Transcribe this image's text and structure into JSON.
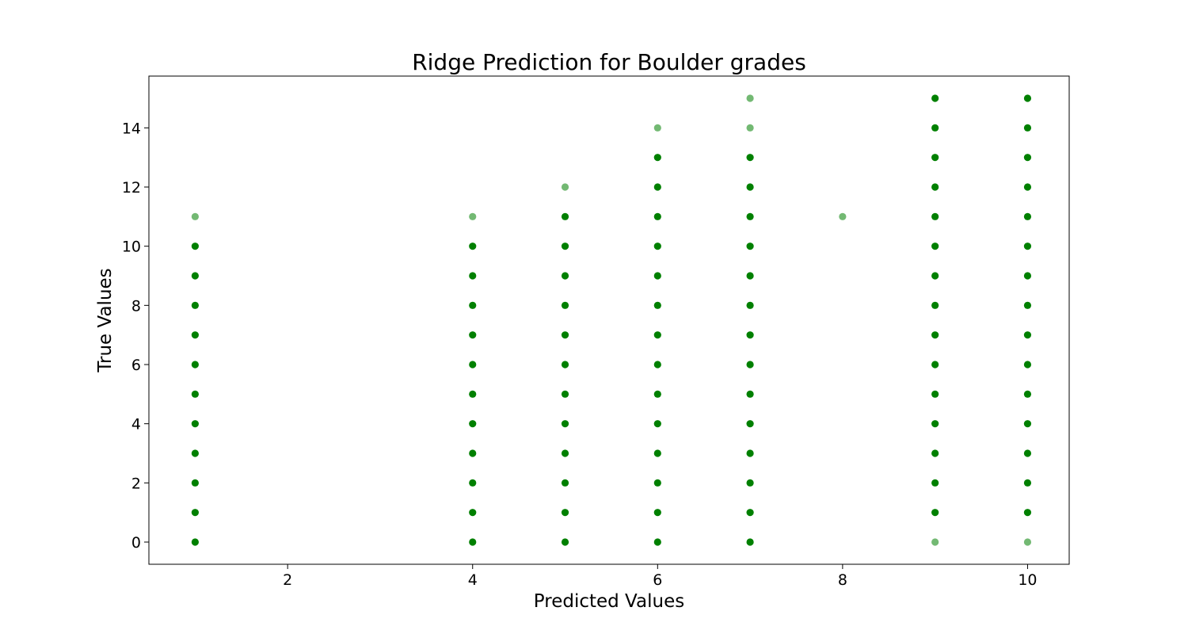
{
  "chart_data": {
    "type": "scatter",
    "title": "Ridge Prediction for Boulder grades",
    "xlabel": "Predicted Values",
    "ylabel": "True Values",
    "xlim": [
      0.5,
      10.45
    ],
    "ylim": [
      -0.75,
      15.75
    ],
    "xticks": [
      2,
      4,
      6,
      8,
      10
    ],
    "yticks": [
      0,
      2,
      4,
      6,
      8,
      10,
      12,
      14
    ],
    "grid": false,
    "marker_color": "#008000",
    "points": [
      {
        "x": 1,
        "ys": [
          0,
          1,
          2,
          3,
          4,
          5,
          6,
          7,
          8,
          9,
          10,
          11
        ]
      },
      {
        "x": 4,
        "ys": [
          0,
          1,
          2,
          3,
          4,
          5,
          6,
          7,
          8,
          9,
          10,
          11
        ]
      },
      {
        "x": 5,
        "ys": [
          0,
          1,
          2,
          3,
          4,
          5,
          6,
          7,
          8,
          9,
          10,
          11,
          12
        ]
      },
      {
        "x": 6,
        "ys": [
          0,
          1,
          2,
          3,
          4,
          5,
          6,
          7,
          8,
          9,
          10,
          11,
          12,
          13,
          14
        ]
      },
      {
        "x": 7,
        "ys": [
          0,
          1,
          2,
          3,
          4,
          5,
          6,
          7,
          8,
          9,
          10,
          11,
          12,
          13,
          14,
          15
        ]
      },
      {
        "x": 8,
        "ys": [
          11
        ]
      },
      {
        "x": 9,
        "ys": [
          0,
          1,
          2,
          3,
          4,
          5,
          6,
          7,
          8,
          9,
          10,
          11,
          12,
          13,
          14,
          15
        ]
      },
      {
        "x": 10,
        "ys": [
          0,
          1,
          2,
          3,
          4,
          5,
          6,
          7,
          8,
          9,
          10,
          11,
          12,
          13,
          14,
          15
        ]
      }
    ],
    "faint_points": [
      [
        4,
        11
      ],
      [
        7,
        15
      ],
      [
        8,
        11
      ],
      [
        9,
        0
      ],
      [
        10,
        0
      ],
      [
        5,
        12
      ],
      [
        6,
        14
      ],
      [
        7,
        14
      ],
      [
        1,
        11
      ]
    ]
  }
}
